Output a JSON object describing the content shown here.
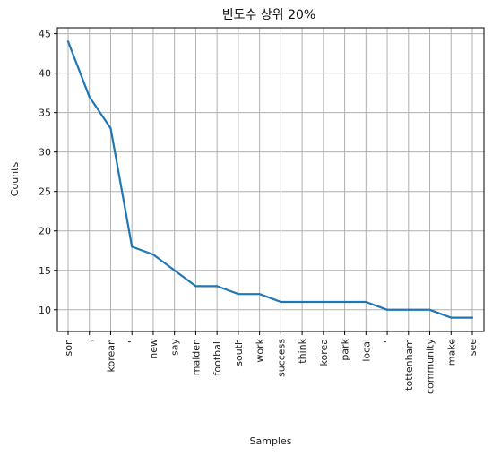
{
  "chart_data": {
    "type": "line",
    "title": "빈도수 상위 20%",
    "xlabel": "Samples",
    "ylabel": "Counts",
    "categories": [
      "son",
      ",",
      "korean",
      "\"",
      "new",
      "say",
      "malden",
      "football",
      "south",
      "work",
      "success",
      "think",
      "korea",
      "park",
      "local",
      "\"",
      "tottenham",
      "community",
      "make",
      "see"
    ],
    "values": [
      44,
      37,
      33,
      18,
      17,
      15,
      13,
      13,
      12,
      12,
      11,
      11,
      11,
      11,
      11,
      10,
      10,
      10,
      9,
      9
    ],
    "ylim": [
      7.25,
      45.75
    ],
    "yticks": [
      10,
      15,
      20,
      25,
      30,
      35,
      40,
      45
    ],
    "grid": true,
    "line_color": "#1f77b4",
    "grid_color": "#b0b0b0"
  }
}
